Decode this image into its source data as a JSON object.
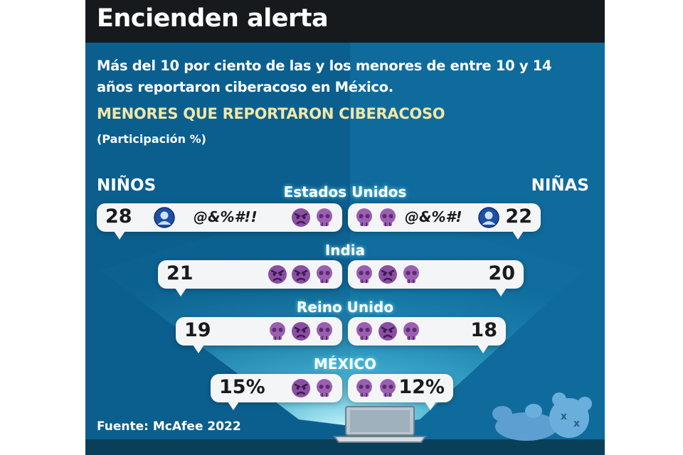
{
  "header": {
    "title": "Encienden alerta"
  },
  "subtitle": "Más del 10 por ciento de las y los menores de entre 10 y 14 años reportaron ciberacoso en México.",
  "chart_data": {
    "type": "bar",
    "title": "MENORES QUE REPORTARON CIBERACOSO",
    "unit": "(Participación %)",
    "categories": [
      "Estados Unidos",
      "India",
      "Reino Unido",
      "MÉXICO"
    ],
    "series": [
      {
        "name": "NIÑOS",
        "values": [
          28,
          21,
          19,
          15
        ]
      },
      {
        "name": "NIÑAS",
        "values": [
          22,
          20,
          18,
          12
        ]
      }
    ],
    "value_labels_left": [
      "28",
      "21",
      "19",
      "15%"
    ],
    "value_labels_right": [
      "22",
      "20",
      "18",
      "12%"
    ],
    "ylim": [
      0,
      30
    ]
  },
  "decor": {
    "symbols_left": "@&%#!!",
    "symbols_right": "@&%#!",
    "colors": {
      "background": "#0b5f8e",
      "bubble": "#f4f5f7",
      "emoji": "#9a5fb0",
      "title_accent": "#f2e7a6"
    },
    "icons": [
      "skull-icon",
      "angry-face-icon",
      "user-avatar-icon",
      "laptop-icon",
      "teddy-bear-icon"
    ]
  },
  "source": "Fuente: McAfee 2022"
}
